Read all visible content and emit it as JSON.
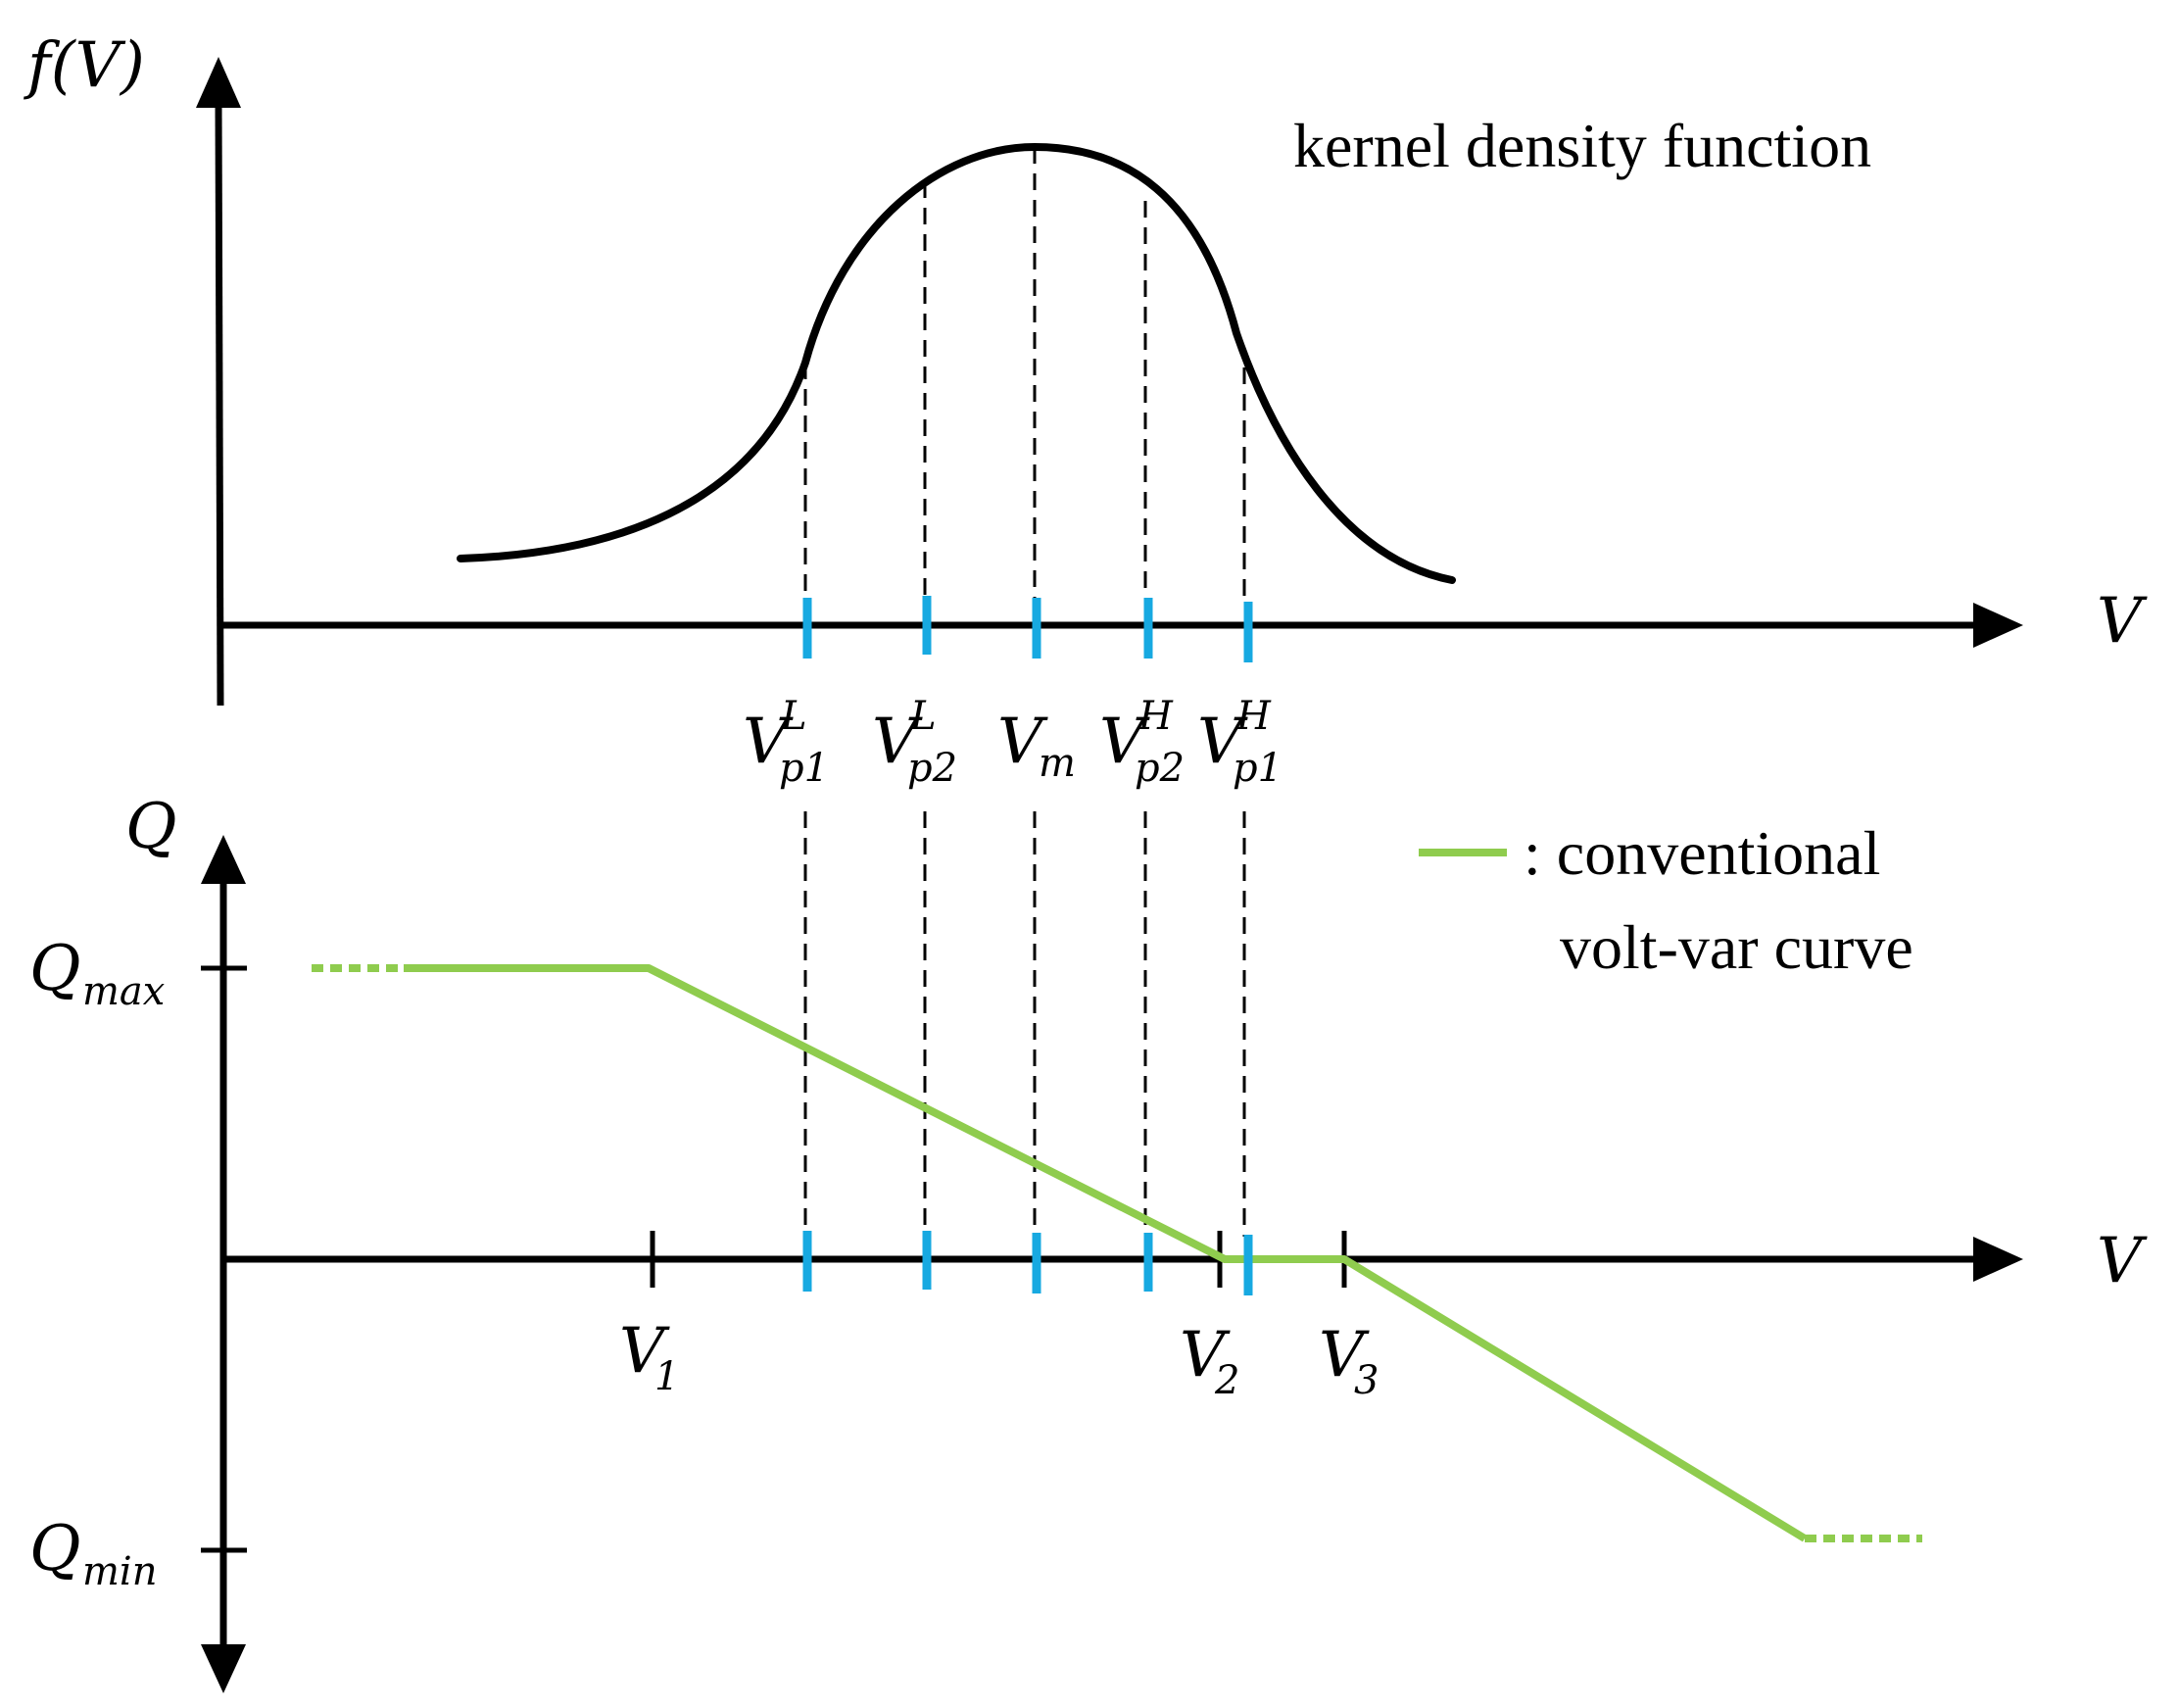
{
  "top_plot": {
    "y_axis_label": "f(V)",
    "x_axis_label": "V",
    "curve_label": "kernel density function",
    "markers": [
      {
        "base": "V",
        "sub": "p1",
        "sup": "L"
      },
      {
        "base": "V",
        "sub": "p2",
        "sup": "L"
      },
      {
        "base": "V",
        "sub": "m",
        "sup": ""
      },
      {
        "base": "V",
        "sub": "p2",
        "sup": "H"
      },
      {
        "base": "V",
        "sub": "p1",
        "sup": "H"
      }
    ]
  },
  "bottom_plot": {
    "y_axis_label": "Q",
    "x_axis_label": "V",
    "q_max": {
      "base": "Q",
      "sub": "max"
    },
    "q_min": {
      "base": "Q",
      "sub": "min"
    },
    "v_ticks": [
      {
        "base": "V",
        "sub": "1"
      },
      {
        "base": "V",
        "sub": "2"
      },
      {
        "base": "V",
        "sub": "3"
      }
    ],
    "legend": {
      "line1": ": conventional",
      "line2": "volt-var curve",
      "color": "#8fcc4e"
    }
  },
  "colors": {
    "marker": "#17a9e1",
    "axis": "#000000",
    "volt_var": "#8fcc4e"
  }
}
